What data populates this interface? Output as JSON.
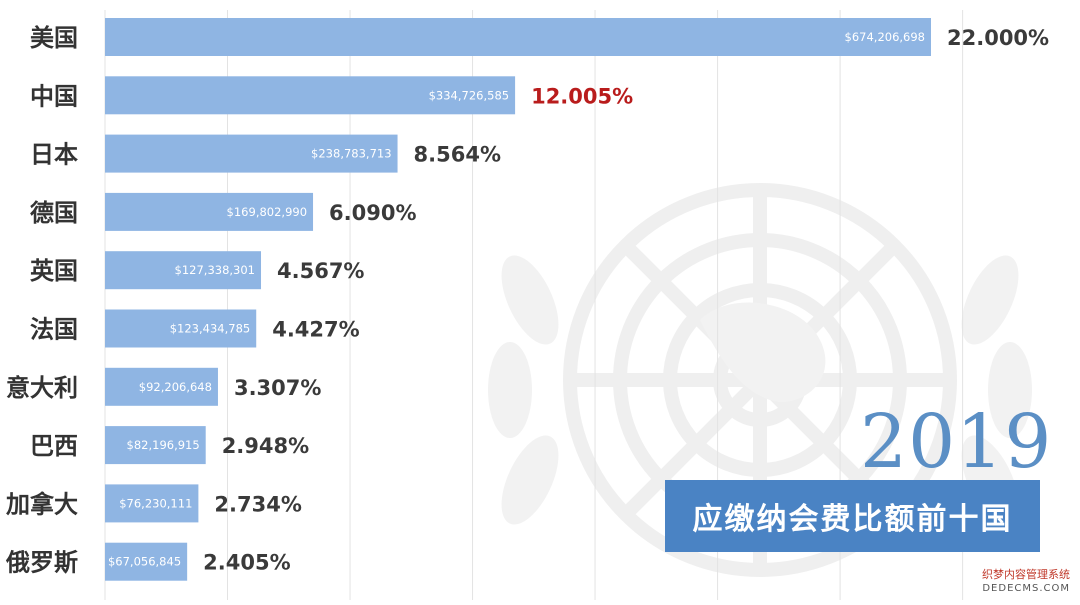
{
  "chart_data": {
    "type": "bar",
    "orientation": "horizontal",
    "categories": [
      "美国",
      "中国",
      "日本",
      "德国",
      "英国",
      "法国",
      "意大利",
      "巴西",
      "加拿大",
      "俄罗斯"
    ],
    "values": [
      674206698,
      334726585,
      238783713,
      169802990,
      127338301,
      123434785,
      92206648,
      82196915,
      76230111,
      67056845
    ],
    "value_labels": [
      "$674,206,698",
      "$334,726,585",
      "$238,783,713",
      "$169,802,990",
      "$127,338,301",
      "$123,434,785",
      "$92,206,648",
      "$82,196,915",
      "$76,230,111",
      "$67,056,845"
    ],
    "percent_labels": [
      "22.000%",
      "12.005%",
      "8.564%",
      "6.090%",
      "4.567%",
      "4.427%",
      "3.307%",
      "2.948%",
      "2.734%",
      "2.405%"
    ],
    "highlight_index": 1,
    "grid": true,
    "xlim": [
      0,
      750000000
    ]
  },
  "year": "2019",
  "banner": "应缴纳会费比额前十国",
  "watermark": {
    "line1": "织梦内容管理系统",
    "line2": "DEDECMS.COM"
  },
  "colors": {
    "bar": "#8fb5e3",
    "bar_highlight": "#8fb5e3",
    "percent_text": "#3a3a3a",
    "percent_highlight": "#b91c1c",
    "grid": "#e3e3e3",
    "emblem": "#f0f0f0",
    "banner_bg": "#4a83c4",
    "year": "#5b8fc5"
  }
}
